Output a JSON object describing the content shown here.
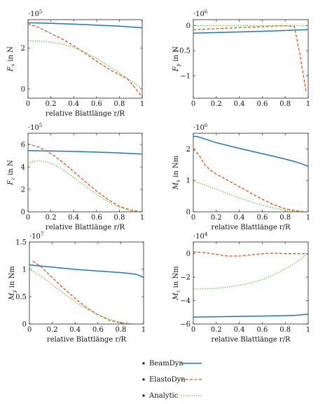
{
  "chart_data": [
    {
      "type": "line",
      "xlabel": "relative Blattlänge r/R",
      "ylabel": "F_x in N",
      "exponent": "·10^5",
      "xlim": [
        0,
        1
      ],
      "ylim": [
        -0.45,
        3.4
      ],
      "xticks": [
        0,
        0.2,
        0.4,
        0.6,
        0.8,
        1
      ],
      "yticks": [
        0,
        2
      ],
      "series": [
        {
          "name": "BeamDyn",
          "x": [
            0,
            0.2,
            0.4,
            0.6,
            0.8,
            1.0
          ],
          "y": [
            3.25,
            3.22,
            3.18,
            3.13,
            3.08,
            3.0
          ]
        },
        {
          "name": "ElastoDyn",
          "x": [
            0,
            0.1,
            0.2,
            0.3,
            0.4,
            0.5,
            0.6,
            0.7,
            0.8,
            0.87,
            0.93,
            1.0
          ],
          "y": [
            3.2,
            3.0,
            2.72,
            2.45,
            2.12,
            1.75,
            1.37,
            1.0,
            0.7,
            0.5,
            0.1,
            -0.4
          ]
        },
        {
          "name": "Analytic",
          "x": [
            0,
            0.1,
            0.2,
            0.3,
            0.4,
            0.5,
            0.6,
            0.7,
            0.8,
            0.9,
            1.0
          ],
          "y": [
            2.35,
            2.35,
            2.3,
            2.2,
            2.05,
            1.8,
            1.5,
            1.15,
            0.78,
            0.4,
            0.0
          ]
        }
      ]
    },
    {
      "type": "line",
      "xlabel": "",
      "ylabel": "F_y in N",
      "exponent": "·10^6",
      "xlim": [
        0,
        1
      ],
      "ylim": [
        -1.45,
        0.12
      ],
      "xticks": [
        0,
        0.2,
        0.4,
        0.6,
        0.8,
        1
      ],
      "yticks": [
        0,
        -0.5,
        -1
      ],
      "series": [
        {
          "name": "BeamDyn",
          "x": [
            0,
            0.5,
            1.0
          ],
          "y": [
            -0.15,
            -0.12,
            -0.08
          ]
        },
        {
          "name": "ElastoDyn",
          "x": [
            0,
            0.2,
            0.4,
            0.6,
            0.8,
            0.88,
            0.93,
            0.98
          ],
          "y": [
            -0.08,
            -0.06,
            -0.04,
            -0.02,
            0.0,
            -0.02,
            -0.6,
            -1.3
          ]
        },
        {
          "name": "Analytic",
          "x": [
            0,
            0.5,
            1.0
          ],
          "y": [
            0.0,
            0.0,
            0.0
          ]
        }
      ]
    },
    {
      "type": "line",
      "xlabel": "relative Blattlänge r/R",
      "ylabel": "F_z in N",
      "exponent": "·10^5",
      "xlim": [
        0,
        1
      ],
      "ylim": [
        0,
        7
      ],
      "xticks": [
        0,
        0.2,
        0.4,
        0.6,
        0.8,
        1
      ],
      "yticks": [
        0,
        2,
        4,
        6
      ],
      "series": [
        {
          "name": "BeamDyn",
          "x": [
            0,
            0.2,
            0.4,
            0.6,
            0.8,
            1.0
          ],
          "y": [
            5.45,
            5.42,
            5.38,
            5.32,
            5.25,
            5.15
          ]
        },
        {
          "name": "ElastoDyn",
          "x": [
            0,
            0.1,
            0.2,
            0.3,
            0.4,
            0.5,
            0.6,
            0.7,
            0.8,
            0.9,
            1.0
          ],
          "y": [
            6.05,
            5.75,
            5.2,
            4.45,
            3.6,
            2.7,
            1.85,
            1.1,
            0.5,
            0.15,
            0.0
          ]
        },
        {
          "name": "Analytic",
          "x": [
            0,
            0.05,
            0.1,
            0.2,
            0.3,
            0.4,
            0.5,
            0.6,
            0.7,
            0.8,
            0.9,
            1.0
          ],
          "y": [
            4.3,
            4.5,
            4.55,
            4.35,
            3.8,
            3.05,
            2.3,
            1.55,
            0.9,
            0.4,
            0.1,
            0.0
          ]
        }
      ]
    },
    {
      "type": "line",
      "xlabel": "relative Blattlänge r/R",
      "ylabel": "M_x in Nm",
      "exponent": "·10^6",
      "xlim": [
        0,
        1
      ],
      "ylim": [
        0,
        2.5
      ],
      "xticks": [
        0,
        0.2,
        0.4,
        0.6,
        0.8,
        1
      ],
      "yticks": [
        0,
        1,
        2
      ],
      "series": [
        {
          "name": "BeamDyn",
          "x": [
            0,
            0.03,
            0.1,
            0.2,
            0.4,
            0.6,
            0.8,
            0.9,
            0.95,
            1.0
          ],
          "y": [
            2.4,
            2.4,
            2.32,
            2.2,
            2.02,
            1.85,
            1.68,
            1.58,
            1.52,
            1.45
          ]
        },
        {
          "name": "ElastoDyn",
          "x": [
            0,
            0.05,
            0.1,
            0.15,
            0.2,
            0.3,
            0.4,
            0.5,
            0.6,
            0.7,
            0.8,
            0.9,
            1.0
          ],
          "y": [
            2.0,
            1.8,
            1.5,
            1.32,
            1.2,
            1.0,
            0.8,
            0.6,
            0.4,
            0.23,
            0.1,
            0.03,
            0.0
          ]
        },
        {
          "name": "Analytic",
          "x": [
            0,
            0.1,
            0.2,
            0.3,
            0.4,
            0.5,
            0.6,
            0.7,
            0.8,
            0.9,
            1.0
          ],
          "y": [
            0.98,
            0.85,
            0.72,
            0.58,
            0.44,
            0.32,
            0.21,
            0.12,
            0.05,
            0.01,
            0.0
          ]
        }
      ]
    },
    {
      "type": "line",
      "xlabel": "relative Blattlänge r/R",
      "ylabel": "M_y in Nm",
      "exponent": "·10^7",
      "xlim": [
        0,
        1
      ],
      "ylim": [
        0,
        1.5
      ],
      "xticks": [
        0,
        0.2,
        0.4,
        0.6,
        0.8,
        1
      ],
      "yticks": [
        0,
        0.5,
        1,
        1.5
      ],
      "series": [
        {
          "name": "BeamDyn",
          "x": [
            0,
            0.2,
            0.4,
            0.6,
            0.8,
            0.9,
            0.95,
            1.0
          ],
          "y": [
            1.08,
            1.04,
            1.0,
            0.97,
            0.94,
            0.92,
            0.9,
            0.85
          ]
        },
        {
          "name": "ElastoDyn",
          "x": [
            0.03,
            0.1,
            0.2,
            0.3,
            0.4,
            0.5,
            0.6,
            0.7,
            0.8,
            0.9,
            1.0
          ],
          "y": [
            1.15,
            1.05,
            0.85,
            0.65,
            0.47,
            0.3,
            0.17,
            0.07,
            0.02,
            0.0,
            0.0
          ]
        },
        {
          "name": "Analytic",
          "x": [
            0,
            0.1,
            0.2,
            0.3,
            0.4,
            0.5,
            0.6,
            0.7,
            0.8,
            0.9,
            1.0
          ],
          "y": [
            1.0,
            0.88,
            0.72,
            0.56,
            0.41,
            0.28,
            0.17,
            0.09,
            0.03,
            0.005,
            0.0
          ]
        }
      ]
    },
    {
      "type": "line",
      "xlabel": "relative Blattlänge r/R",
      "ylabel": "M_z in Nm",
      "exponent": "·10^4",
      "xlim": [
        0,
        1
      ],
      "ylim": [
        -6,
        1
      ],
      "xticks": [
        0,
        0.2,
        0.4,
        0.6,
        0.8,
        1
      ],
      "yticks": [
        0,
        -2,
        -4,
        -6
      ],
      "series": [
        {
          "name": "BeamDyn",
          "x": [
            0,
            0.2,
            0.4,
            0.6,
            0.8,
            0.9,
            1.0
          ],
          "y": [
            -5.4,
            -5.38,
            -5.35,
            -5.32,
            -5.28,
            -5.25,
            -5.15
          ]
        },
        {
          "name": "ElastoDyn",
          "x": [
            0,
            0.1,
            0.2,
            0.3,
            0.4,
            0.5,
            0.6,
            0.7,
            0.8,
            0.9,
            1.0
          ],
          "y": [
            0.15,
            0.1,
            -0.05,
            -0.2,
            -0.2,
            -0.1,
            0.0,
            0.05,
            0.0,
            0.0,
            0.0
          ]
        },
        {
          "name": "Analytic",
          "x": [
            0,
            0.1,
            0.2,
            0.3,
            0.4,
            0.5,
            0.6,
            0.7,
            0.8,
            0.9,
            1.0
          ],
          "y": [
            -3.0,
            -3.0,
            -2.95,
            -2.85,
            -2.7,
            -2.5,
            -2.2,
            -1.8,
            -1.3,
            -0.7,
            0.0
          ]
        }
      ]
    }
  ],
  "legend": [
    {
      "name": "BeamDyn",
      "color": "#1f77b4",
      "style": "solid"
    },
    {
      "name": "ElastoDyn",
      "color": "#d95319",
      "style": "dashed"
    },
    {
      "name": "Analytic",
      "color": "#55b82b",
      "style": "dotted"
    }
  ]
}
